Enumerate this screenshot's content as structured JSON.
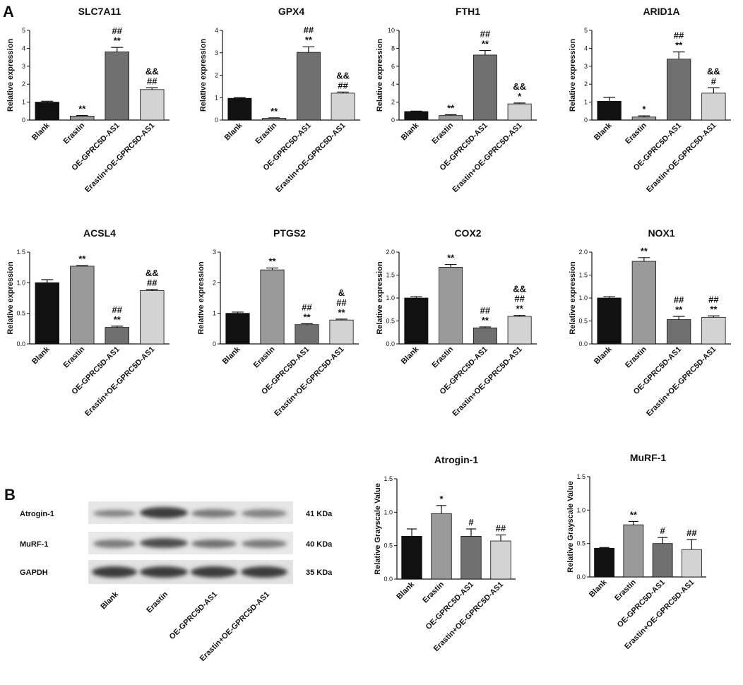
{
  "panel_labels": [
    "A",
    "B"
  ],
  "blot": {
    "rows": [
      "Atrogin-1",
      "MuRF-1",
      "GAPDH"
    ],
    "sizes": [
      "41 KDa",
      "40 KDa",
      "35 KDa"
    ],
    "lanes": [
      "Blank",
      "Erastin",
      "OE-GPRC5D-AS1",
      "Erastin+OE-GPRC5D-AS1"
    ]
  },
  "chart_data": [
    {
      "type": "bar",
      "title": "SLC7A11",
      "ylabel": "Relative expression",
      "categories": [
        "Blank",
        "Erastin",
        "OE-GPRC5D-AS1",
        "Erastin+OE-GPRC5D-AS1"
      ],
      "values": [
        1.0,
        0.22,
        3.8,
        1.7
      ],
      "errors": [
        0.05,
        0.03,
        0.25,
        0.1
      ],
      "colors": [
        "#111111",
        "#9a9a9a",
        "#707070",
        "#d3d3d3"
      ],
      "annotations": [
        [],
        [
          "**"
        ],
        [
          "##",
          "**"
        ],
        [
          "&&",
          "##"
        ]
      ],
      "ylim": [
        0,
        5
      ],
      "yticks": [
        0,
        1,
        2,
        3,
        4,
        5
      ]
    },
    {
      "type": "bar",
      "title": "GPX4",
      "ylabel": "Relative expression",
      "categories": [
        "Blank",
        "Erastin",
        "OE-GPRC5D-AS1",
        "Erastin+OE-GPRC5D-AS1"
      ],
      "values": [
        0.97,
        0.08,
        3.02,
        1.2
      ],
      "errors": [
        0.03,
        0.02,
        0.25,
        0.05
      ],
      "colors": [
        "#111111",
        "#9a9a9a",
        "#707070",
        "#d3d3d3"
      ],
      "annotations": [
        [],
        [
          "**"
        ],
        [
          "##",
          "**"
        ],
        [
          "&&",
          "##"
        ]
      ],
      "ylim": [
        0,
        4
      ],
      "yticks": [
        0,
        1,
        2,
        3,
        4
      ]
    },
    {
      "type": "bar",
      "title": "FTH1",
      "ylabel": "Relative expression",
      "categories": [
        "Blank",
        "Erastin",
        "OE-GPRC5D-AS1",
        "Erastin+OE-GPRC5D-AS1"
      ],
      "values": [
        0.95,
        0.5,
        7.25,
        1.8
      ],
      "errors": [
        0.05,
        0.1,
        0.5,
        0.1
      ],
      "colors": [
        "#111111",
        "#9a9a9a",
        "#707070",
        "#d3d3d3"
      ],
      "annotations": [
        [],
        [
          "**"
        ],
        [
          "##",
          "**"
        ],
        [
          "&&",
          "*"
        ]
      ],
      "ylim": [
        0,
        10
      ],
      "yticks": [
        0,
        2,
        4,
        6,
        8,
        10
      ]
    },
    {
      "type": "bar",
      "title": "ARID1A",
      "ylabel": "Relative expression",
      "categories": [
        "Blank",
        "Erastin",
        "OE-GPRC5D-AS1",
        "Erastin+OE-GPRC5D-AS1"
      ],
      "values": [
        1.05,
        0.17,
        3.4,
        1.5
      ],
      "errors": [
        0.22,
        0.06,
        0.4,
        0.3
      ],
      "colors": [
        "#111111",
        "#9a9a9a",
        "#707070",
        "#d3d3d3"
      ],
      "annotations": [
        [],
        [
          "*"
        ],
        [
          "##",
          "**"
        ],
        [
          "&&",
          "#"
        ]
      ],
      "ylim": [
        0,
        5
      ],
      "yticks": [
        0,
        1,
        2,
        3,
        4,
        5
      ]
    },
    {
      "type": "bar",
      "title": "ACSL4",
      "ylabel": "Relative expression",
      "categories": [
        "Blank",
        "Erastin",
        "OE-GPRC5D-AS1",
        "Erastin+OE-GPRC5D-AS1"
      ],
      "values": [
        1.0,
        1.27,
        0.27,
        0.87
      ],
      "errors": [
        0.05,
        0.01,
        0.02,
        0.02
      ],
      "colors": [
        "#111111",
        "#9a9a9a",
        "#707070",
        "#d3d3d3"
      ],
      "annotations": [
        [],
        [
          "**"
        ],
        [
          "##",
          "**"
        ],
        [
          "&&",
          "##"
        ]
      ],
      "ylim": [
        0,
        1.5
      ],
      "yticks": [
        {
          "value": 0,
          "label": "0.0"
        },
        0.5,
        {
          "value": 1,
          "label": "1.0"
        },
        1.5
      ]
    },
    {
      "type": "bar",
      "title": "PTGS2",
      "ylabel": "Relative expression",
      "categories": [
        "Blank",
        "Erastin",
        "OE-GPRC5D-AS1",
        "Erastin+OE-GPRC5D-AS1"
      ],
      "values": [
        1.0,
        2.42,
        0.63,
        0.78
      ],
      "errors": [
        0.04,
        0.06,
        0.03,
        0.03
      ],
      "colors": [
        "#111111",
        "#9a9a9a",
        "#707070",
        "#d3d3d3"
      ],
      "annotations": [
        [],
        [
          "**"
        ],
        [
          "##",
          "**"
        ],
        [
          "&",
          "##",
          "**"
        ]
      ],
      "ylim": [
        0,
        3
      ],
      "yticks": [
        0,
        1,
        2,
        3
      ]
    },
    {
      "type": "bar",
      "title": "COX2",
      "ylabel": "Relative expression",
      "categories": [
        "Blank",
        "Erastin",
        "OE-GPRC5D-AS1",
        "Erastin+OE-GPRC5D-AS1"
      ],
      "values": [
        1.0,
        1.67,
        0.35,
        0.6
      ],
      "errors": [
        0.03,
        0.06,
        0.02,
        0.02
      ],
      "colors": [
        "#111111",
        "#9a9a9a",
        "#707070",
        "#d3d3d3"
      ],
      "annotations": [
        [],
        [
          "**"
        ],
        [
          "##",
          "**"
        ],
        [
          "&&",
          "##",
          "**"
        ]
      ],
      "ylim": [
        0,
        2
      ],
      "yticks": [
        {
          "value": 0,
          "label": "0.0"
        },
        0.5,
        {
          "value": 1,
          "label": "1.0"
        },
        1.5,
        {
          "value": 2,
          "label": "2.0"
        }
      ]
    },
    {
      "type": "bar",
      "title": "NOX1",
      "ylabel": "Relative expression",
      "categories": [
        "Blank",
        "Erastin",
        "OE-GPRC5D-AS1",
        "Erastin+OE-GPRC5D-AS1"
      ],
      "values": [
        1.0,
        1.8,
        0.53,
        0.58
      ],
      "errors": [
        0.03,
        0.08,
        0.07,
        0.03
      ],
      "colors": [
        "#111111",
        "#9a9a9a",
        "#707070",
        "#d3d3d3"
      ],
      "annotations": [
        [],
        [
          "**"
        ],
        [
          "##",
          "**"
        ],
        [
          "##",
          "**"
        ]
      ],
      "ylim": [
        0,
        2
      ],
      "yticks": [
        {
          "value": 0,
          "label": "0.0"
        },
        0.5,
        {
          "value": 1,
          "label": "1.0"
        },
        1.5,
        {
          "value": 2,
          "label": "2.0"
        }
      ]
    },
    {
      "type": "bar",
      "title": "Atrogin-1",
      "ylabel": "Relative Grayscale Value",
      "categories": [
        "Blank",
        "Erastin",
        "OE-GPRC5D-AS1",
        "Erastin+OE-GPRC5D-AS1"
      ],
      "values": [
        0.64,
        0.98,
        0.64,
        0.57
      ],
      "errors": [
        0.11,
        0.12,
        0.11,
        0.09
      ],
      "colors": [
        "#111111",
        "#9a9a9a",
        "#707070",
        "#d3d3d3"
      ],
      "annotations": [
        [],
        [
          "*"
        ],
        [
          "#"
        ],
        [
          "##"
        ]
      ],
      "ylim": [
        0,
        1.5
      ],
      "yticks": [
        {
          "value": 0,
          "label": "0.0"
        },
        0.5,
        {
          "value": 1,
          "label": "1.0"
        },
        1.5
      ]
    },
    {
      "type": "bar",
      "title": "MuRF-1",
      "ylabel": "Relative Grayscale Value",
      "categories": [
        "Blank",
        "Erastin",
        "OE-GPRC5D-AS1",
        "Erastin+OE-GPRC5D-AS1"
      ],
      "values": [
        0.43,
        0.78,
        0.5,
        0.41
      ],
      "errors": [
        0.01,
        0.05,
        0.09,
        0.15
      ],
      "colors": [
        "#111111",
        "#9a9a9a",
        "#707070",
        "#d3d3d3"
      ],
      "annotations": [
        [],
        [
          "**"
        ],
        [
          "#"
        ],
        [
          "##"
        ]
      ],
      "ylim": [
        0,
        1.5
      ],
      "yticks": [
        {
          "value": 0,
          "label": "0.0"
        },
        0.5,
        {
          "value": 1,
          "label": "1.0"
        },
        1.5
      ]
    }
  ]
}
